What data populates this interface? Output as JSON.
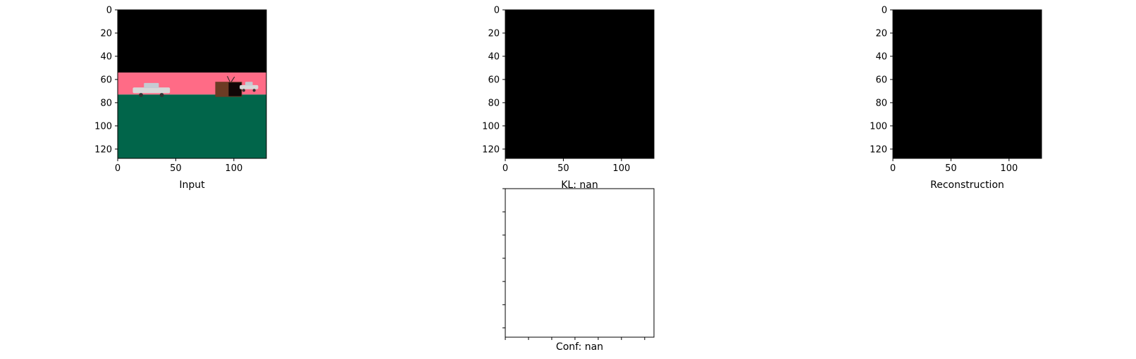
{
  "chart_data": [
    {
      "type": "image",
      "name": "input-panel",
      "xlabel": "Input",
      "xlim": [
        0,
        128
      ],
      "ylim": [
        128,
        0
      ],
      "xticks": [
        0,
        50,
        100
      ],
      "yticks": [
        0,
        20,
        40,
        60,
        80,
        100,
        120
      ],
      "show_tick_labels": true,
      "image_bands": [
        {
          "y_start": 0,
          "y_end": 54,
          "color": "#000000"
        },
        {
          "y_start": 54,
          "y_end": 73,
          "color": "#ff6b86"
        },
        {
          "y_start": 73,
          "y_end": 128,
          "color": "#01654a"
        }
      ],
      "objects": [
        {
          "kind": "car",
          "x_start": 13,
          "x_end": 45,
          "y_start": 63,
          "y_end": 74,
          "color": "#d8d8d8"
        },
        {
          "kind": "tv",
          "x_start": 84,
          "x_end": 107,
          "y_start": 62,
          "y_end": 75,
          "color": "#6b3b24"
        },
        {
          "kind": "car",
          "x_start": 105,
          "x_end": 121,
          "y_start": 62,
          "y_end": 70,
          "color": "#d8d8d8"
        }
      ]
    },
    {
      "type": "image",
      "name": "kl-panel",
      "xlabel": "KL: nan",
      "xlim": [
        0,
        128
      ],
      "ylim": [
        128,
        0
      ],
      "xticks": [
        0,
        50,
        100
      ],
      "yticks": [
        0,
        20,
        40,
        60,
        80,
        100,
        120
      ],
      "show_tick_labels": true,
      "image_bands": [
        {
          "y_start": 0,
          "y_end": 128,
          "color": "#000000"
        }
      ]
    },
    {
      "type": "image",
      "name": "reconstruction-panel",
      "xlabel": "Reconstruction",
      "xlim": [
        0,
        128
      ],
      "ylim": [
        128,
        0
      ],
      "xticks": [
        0,
        50,
        100
      ],
      "yticks": [
        0,
        20,
        40,
        60,
        80,
        100,
        120
      ],
      "show_tick_labels": true,
      "image_bands": [
        {
          "y_start": 0,
          "y_end": 128,
          "color": "#000000"
        }
      ]
    },
    {
      "type": "image",
      "name": "conf-panel",
      "xlabel": "Conf: nan",
      "xlim": [
        0,
        128
      ],
      "ylim": [
        128,
        0
      ],
      "xticks": [
        0,
        20,
        40,
        60,
        80,
        100,
        120
      ],
      "yticks": [
        0,
        20,
        40,
        60,
        80,
        100,
        120
      ],
      "show_tick_labels": false,
      "image_bands": []
    }
  ]
}
